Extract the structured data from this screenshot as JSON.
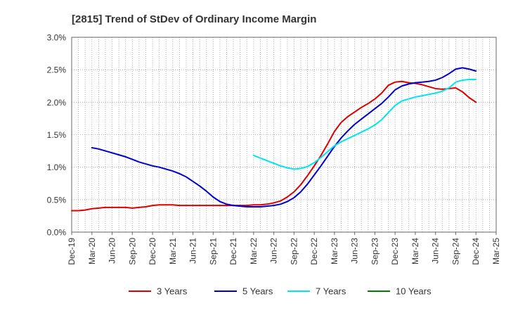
{
  "chart_data": {
    "type": "line",
    "title": "[2815]  Trend of StDev of Ordinary Income Margin",
    "xlabel": "",
    "ylabel": "",
    "ylim": [
      0,
      3.0
    ],
    "y_ticks": [
      "0.0%",
      "0.5%",
      "1.0%",
      "1.5%",
      "2.0%",
      "2.5%",
      "3.0%"
    ],
    "x_ticks": [
      "Dec-19",
      "Mar-20",
      "Jun-20",
      "Sep-20",
      "Dec-20",
      "Mar-21",
      "Jun-21",
      "Sep-21",
      "Dec-21",
      "Mar-22",
      "Jun-22",
      "Sep-22",
      "Dec-22",
      "Mar-23",
      "Jun-23",
      "Sep-23",
      "Dec-23",
      "Mar-24",
      "Jun-24",
      "Sep-24",
      "Dec-24",
      "Mar-25"
    ],
    "grid": true,
    "legend_position": "bottom",
    "series": [
      {
        "name": "3 Years",
        "color": "#dd0000",
        "x": [
          "Dec-19",
          "Jan-20",
          "Feb-20",
          "Mar-20",
          "Apr-20",
          "May-20",
          "Jun-20",
          "Jul-20",
          "Aug-20",
          "Sep-20",
          "Oct-20",
          "Nov-20",
          "Dec-20",
          "Jan-21",
          "Feb-21",
          "Mar-21",
          "Apr-21",
          "May-21",
          "Jun-21",
          "Jul-21",
          "Aug-21",
          "Sep-21",
          "Oct-21",
          "Nov-21",
          "Dec-21",
          "Jan-22",
          "Feb-22",
          "Mar-22",
          "Apr-22",
          "May-22",
          "Jun-22",
          "Jul-22",
          "Aug-22",
          "Sep-22",
          "Oct-22",
          "Nov-22",
          "Dec-22",
          "Jan-23",
          "Feb-23",
          "Mar-23",
          "Apr-23",
          "May-23",
          "Jun-23",
          "Jul-23",
          "Aug-23",
          "Sep-23",
          "Oct-23",
          "Nov-23",
          "Dec-23",
          "Jan-24",
          "Feb-24",
          "Mar-24",
          "Apr-24",
          "May-24",
          "Jun-24",
          "Jul-24",
          "Aug-24",
          "Sep-24",
          "Oct-24",
          "Nov-24",
          "Dec-24"
        ],
        "values": [
          0.33,
          0.33,
          0.34,
          0.36,
          0.37,
          0.38,
          0.38,
          0.38,
          0.38,
          0.37,
          0.38,
          0.39,
          0.41,
          0.42,
          0.42,
          0.42,
          0.41,
          0.41,
          0.41,
          0.41,
          0.41,
          0.41,
          0.41,
          0.41,
          0.41,
          0.41,
          0.41,
          0.42,
          0.42,
          0.43,
          0.45,
          0.48,
          0.54,
          0.62,
          0.73,
          0.87,
          1.02,
          1.18,
          1.36,
          1.55,
          1.69,
          1.78,
          1.85,
          1.92,
          1.98,
          2.05,
          2.14,
          2.26,
          2.31,
          2.32,
          2.3,
          2.29,
          2.27,
          2.24,
          2.21,
          2.2,
          2.21,
          2.22,
          2.16,
          2.07,
          2.0
        ]
      },
      {
        "name": "5 Years",
        "color": "#0000cc",
        "x": [
          "Dec-19",
          "Jan-20",
          "Feb-20",
          "Mar-20",
          "Apr-20",
          "May-20",
          "Jun-20",
          "Jul-20",
          "Aug-20",
          "Sep-20",
          "Oct-20",
          "Nov-20",
          "Dec-20",
          "Jan-21",
          "Feb-21",
          "Mar-21",
          "Apr-21",
          "May-21",
          "Jun-21",
          "Jul-21",
          "Aug-21",
          "Sep-21",
          "Oct-21",
          "Nov-21",
          "Dec-21",
          "Jan-22",
          "Feb-22",
          "Mar-22",
          "Apr-22",
          "May-22",
          "Jun-22",
          "Jul-22",
          "Aug-22",
          "Sep-22",
          "Oct-22",
          "Nov-22",
          "Dec-22",
          "Jan-23",
          "Feb-23",
          "Mar-23",
          "Apr-23",
          "May-23",
          "Jun-23",
          "Jul-23",
          "Aug-23",
          "Sep-23",
          "Oct-23",
          "Nov-23",
          "Dec-23",
          "Jan-24",
          "Feb-24",
          "Mar-24",
          "Apr-24",
          "May-24",
          "Jun-24",
          "Jul-24",
          "Aug-24",
          "Sep-24",
          "Oct-24",
          "Nov-24",
          "Dec-24"
        ],
        "values": [
          null,
          null,
          null,
          1.3,
          1.28,
          1.25,
          1.22,
          1.19,
          1.16,
          1.12,
          1.08,
          1.05,
          1.02,
          1.0,
          0.97,
          0.94,
          0.9,
          0.85,
          0.78,
          0.71,
          0.63,
          0.54,
          0.47,
          0.43,
          0.41,
          0.4,
          0.39,
          0.39,
          0.39,
          0.4,
          0.41,
          0.43,
          0.47,
          0.53,
          0.62,
          0.74,
          0.88,
          1.02,
          1.17,
          1.32,
          1.45,
          1.56,
          1.66,
          1.74,
          1.82,
          1.9,
          1.98,
          2.08,
          2.19,
          2.25,
          2.28,
          2.3,
          2.31,
          2.32,
          2.34,
          2.38,
          2.44,
          2.51,
          2.53,
          2.51,
          2.48
        ]
      },
      {
        "name": "7 Years",
        "color": "#00e5ee",
        "x": [
          "Mar-22",
          "Apr-22",
          "May-22",
          "Jun-22",
          "Jul-22",
          "Aug-22",
          "Sep-22",
          "Oct-22",
          "Nov-22",
          "Dec-22",
          "Jan-23",
          "Feb-23",
          "Mar-23",
          "Apr-23",
          "May-23",
          "Jun-23",
          "Jul-23",
          "Aug-23",
          "Sep-23",
          "Oct-23",
          "Nov-23",
          "Dec-23",
          "Jan-24",
          "Feb-24",
          "Mar-24",
          "Apr-24",
          "May-24",
          "Jun-24",
          "Jul-24",
          "Aug-24",
          "Sep-24",
          "Oct-24",
          "Nov-24",
          "Dec-24"
        ],
        "values": [
          1.18,
          1.14,
          1.1,
          1.06,
          1.02,
          0.99,
          0.97,
          0.98,
          1.01,
          1.07,
          1.15,
          1.24,
          1.33,
          1.39,
          1.44,
          1.49,
          1.54,
          1.59,
          1.65,
          1.73,
          1.84,
          1.95,
          2.02,
          2.05,
          2.08,
          2.1,
          2.12,
          2.14,
          2.17,
          2.22,
          2.31,
          2.34,
          2.35,
          2.35
        ]
      },
      {
        "name": "10 Years",
        "color": "#008000",
        "x": [],
        "values": []
      }
    ]
  }
}
